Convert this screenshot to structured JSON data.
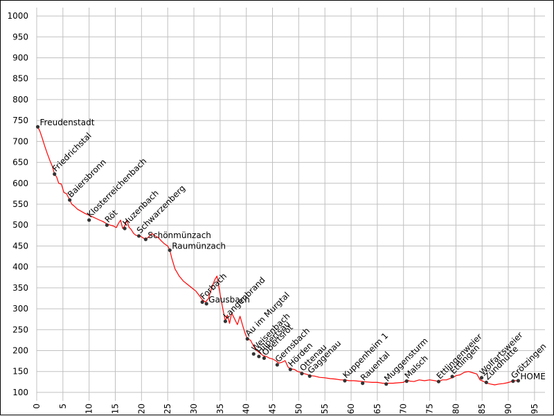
{
  "chart_data": {
    "type": "line",
    "title": "",
    "xlabel": "",
    "ylabel": "",
    "xlim": [
      0,
      97
    ],
    "ylim": [
      80,
      1020
    ],
    "x_ticks": [
      0,
      5,
      10,
      15,
      20,
      25,
      30,
      35,
      40,
      45,
      50,
      55,
      60,
      65,
      70,
      75,
      80,
      85,
      90,
      95
    ],
    "y_ticks": [
      100,
      150,
      200,
      250,
      300,
      350,
      400,
      450,
      500,
      550,
      600,
      650,
      700,
      750,
      800,
      850,
      900,
      950,
      1000
    ],
    "grid": true,
    "line_color": "#ff0000",
    "marker_color": "#333333",
    "series": [
      {
        "x": [
          0.2,
          0.6,
          1.0,
          1.5,
          2.0,
          2.5,
          3.0,
          3.4,
          3.8,
          4.2,
          4.7,
          5.2,
          5.7,
          6.3,
          6.7,
          7.2,
          7.8,
          8.5,
          9.2,
          9.9,
          10.6,
          11.3,
          12.0,
          12.6,
          13.4,
          14.0,
          14.6,
          15.2,
          15.6,
          16.0,
          16.4,
          16.8,
          17.2,
          17.6,
          18.0,
          18.5,
          19.0,
          19.5,
          20.2,
          20.8,
          21.4,
          22.0,
          22.6,
          23.2,
          23.8,
          24.4,
          25.0,
          25.4,
          25.8,
          26.4,
          27.2,
          28.0,
          28.8,
          29.6,
          30.4,
          31.0,
          31.6,
          32.2,
          32.8,
          33.4,
          34.0,
          34.4,
          34.8,
          35.2,
          35.6,
          36.0,
          36.4,
          36.8,
          37.2,
          37.8,
          38.3,
          38.8,
          39.3,
          39.8,
          40.2,
          40.8,
          41.4,
          42.0,
          42.6,
          43.2,
          43.8,
          44.4,
          45.0,
          45.6,
          46.2,
          46.8,
          47.4,
          48.0,
          48.6,
          49.2,
          49.8,
          50.4,
          51.0,
          51.6,
          52.2,
          53.0,
          54.0,
          55.0,
          56.0,
          57.0,
          58.0,
          58.8,
          59.6,
          60.5,
          61.4,
          62.2,
          63.0,
          64.0,
          65.0,
          66.0,
          67.0,
          68.0,
          69.0,
          70.0,
          70.6,
          71.2,
          72.0,
          73.0,
          74.0,
          75.0,
          76.0,
          76.7,
          77.4,
          78.2,
          79.0,
          79.5,
          80.0,
          80.8,
          81.6,
          82.4,
          83.2,
          84.0,
          84.6,
          85.3,
          85.9,
          86.6,
          87.4,
          88.2,
          89.0,
          89.8,
          90.6,
          91.3,
          92.0
        ],
        "y": [
          735,
          725,
          710,
          690,
          672,
          655,
          640,
          622,
          615,
          600,
          598,
          578,
          575,
          560,
          550,
          545,
          538,
          533,
          528,
          524,
          520,
          516,
          512,
          509,
          503,
          500,
          498,
          494,
          504,
          512,
          492,
          498,
          512,
          495,
          490,
          480,
          475,
          476,
          470,
          466,
          472,
          480,
          474,
          470,
          462,
          455,
          450,
          440,
          420,
          395,
          378,
          366,
          358,
          350,
          342,
          332,
          322,
          316,
          325,
          350,
          370,
          378,
          350,
          320,
          295,
          270,
          285,
          265,
          290,
          275,
          262,
          282,
          260,
          240,
          228,
          225,
          210,
          200,
          194,
          188,
          186,
          182,
          180,
          176,
          170,
          172,
          176,
          160,
          156,
          155,
          150,
          148,
          145,
          143,
          140,
          139,
          136,
          135,
          133,
          132,
          130,
          130,
          128,
          128,
          127,
          126,
          125,
          124,
          124,
          122,
          122,
          122,
          123,
          124,
          130,
          127,
          126,
          130,
          128,
          130,
          128,
          126,
          130,
          130,
          134,
          136,
          140,
          142,
          148,
          150,
          147,
          144,
          130,
          126,
          122,
          120,
          118,
          120,
          121,
          123,
          126,
          128,
          128
        ]
      }
    ],
    "places": [
      {
        "name": "Freudenstadt",
        "x": 0.2,
        "y": 735,
        "angle": 0,
        "side": "right"
      },
      {
        "name": "Friedrichstal",
        "x": 3.4,
        "y": 622,
        "angle": -45,
        "side": "up"
      },
      {
        "name": "Baiersbronn",
        "x": 6.3,
        "y": 560,
        "angle": -45,
        "side": "up"
      },
      {
        "name": "Klosterreichenbach",
        "x": 10.0,
        "y": 512,
        "angle": -45,
        "side": "up"
      },
      {
        "name": "Röt",
        "x": 13.4,
        "y": 500,
        "angle": -45,
        "side": "up"
      },
      {
        "name": "Huzenbach",
        "x": 16.8,
        "y": 492,
        "angle": -45,
        "side": "up"
      },
      {
        "name": "Schwarzenberg",
        "x": 19.5,
        "y": 474,
        "angle": -45,
        "side": "up"
      },
      {
        "name": "Schönmünzach",
        "x": 20.8,
        "y": 466,
        "angle": 0,
        "side": "right"
      },
      {
        "name": "Raumünzach",
        "x": 25.4,
        "y": 440,
        "angle": 0,
        "side": "right"
      },
      {
        "name": "Forbach",
        "x": 31.6,
        "y": 316,
        "angle": -45,
        "side": "up"
      },
      {
        "name": "Gausbach",
        "x": 32.4,
        "y": 312,
        "angle": 0,
        "side": "right"
      },
      {
        "name": "Langenbrand",
        "x": 36.0,
        "y": 270,
        "angle": -45,
        "side": "up"
      },
      {
        "name": "Au im Murgtal",
        "x": 40.2,
        "y": 228,
        "angle": -45,
        "side": "up"
      },
      {
        "name": "Weisenbach",
        "x": 41.4,
        "y": 192,
        "angle": -45,
        "side": "up"
      },
      {
        "name": "Hilpertsau",
        "x": 42.4,
        "y": 186,
        "angle": -45,
        "side": "up"
      },
      {
        "name": "Obertsrot",
        "x": 43.4,
        "y": 182,
        "angle": -45,
        "side": "up"
      },
      {
        "name": "Gernsbach",
        "x": 45.9,
        "y": 166,
        "angle": -45,
        "side": "up"
      },
      {
        "name": "Hörden",
        "x": 48.4,
        "y": 155,
        "angle": -45,
        "side": "up"
      },
      {
        "name": "Ottenau",
        "x": 50.6,
        "y": 145,
        "angle": -45,
        "side": "up"
      },
      {
        "name": "Gaggenau",
        "x": 52.1,
        "y": 139,
        "angle": -45,
        "side": "up"
      },
      {
        "name": "Kuppenheim 1",
        "x": 58.8,
        "y": 128,
        "angle": -45,
        "side": "up"
      },
      {
        "name": "Rauental",
        "x": 62.2,
        "y": 122,
        "angle": -45,
        "side": "up"
      },
      {
        "name": "Muggensturm",
        "x": 66.7,
        "y": 120,
        "angle": -45,
        "side": "up"
      },
      {
        "name": "Malsch",
        "x": 70.6,
        "y": 127,
        "angle": -45,
        "side": "up"
      },
      {
        "name": "Ettlingenweier",
        "x": 76.7,
        "y": 126,
        "angle": -45,
        "side": "up"
      },
      {
        "name": "Ettlingen",
        "x": 79.3,
        "y": 138,
        "angle": -45,
        "side": "up"
      },
      {
        "name": "Wolfartsweier",
        "x": 84.9,
        "y": 135,
        "angle": -45,
        "side": "up"
      },
      {
        "name": "Zündhütte",
        "x": 85.8,
        "y": 124,
        "angle": -45,
        "side": "up"
      },
      {
        "name": "Grötzingen",
        "x": 90.9,
        "y": 127,
        "angle": -45,
        "side": "up"
      },
      {
        "name": "HOME",
        "x": 91.9,
        "y": 128,
        "angle": 0,
        "side": "right"
      }
    ]
  }
}
